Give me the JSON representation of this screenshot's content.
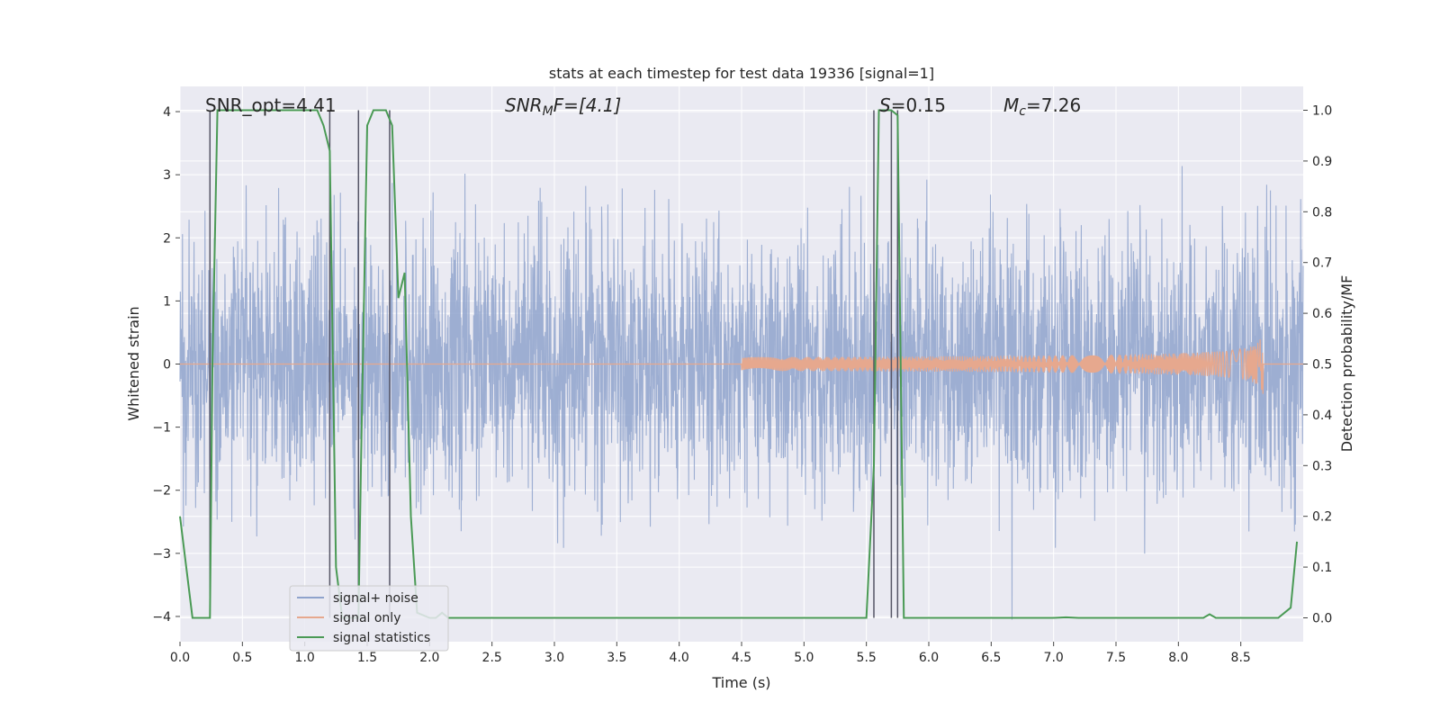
{
  "chart_data": {
    "type": "line",
    "title": "stats at each timestep for test data 19336 [signal=1]",
    "xlabel": "Time (s)",
    "ylabel": "Whitened strain",
    "y2label": "Detection probability/MF",
    "xlim": [
      0.0,
      9.0
    ],
    "ylim": [
      -4.4,
      4.4
    ],
    "y2lim": [
      -0.047,
      1.047
    ],
    "xticks": [
      "0.0",
      "0.5",
      "1.0",
      "1.5",
      "2.0",
      "2.5",
      "3.0",
      "3.5",
      "4.0",
      "4.5",
      "5.0",
      "5.5",
      "6.0",
      "6.5",
      "7.0",
      "7.5",
      "8.0",
      "8.5"
    ],
    "yticks": [
      "−4",
      "−3",
      "−2",
      "−1",
      "0",
      "1",
      "2",
      "3",
      "4"
    ],
    "y2ticks": [
      "0.0",
      "0.1",
      "0.2",
      "0.3",
      "0.4",
      "0.5",
      "0.6",
      "0.7",
      "0.8",
      "0.9",
      "1.0"
    ],
    "grid": true,
    "legend_position": "lower-left",
    "annotations": {
      "snr_opt": "SNR_opt=4.41",
      "snr_mf_main": "SNR",
      "snr_mf_sub": "M",
      "snr_mf_rest": "F=[4.1]",
      "s_main": "S",
      "s_rest": "=0.15",
      "mc_main": "M",
      "mc_sub": "c",
      "mc_rest": "=7.26"
    },
    "series": [
      {
        "name": "signal+ noise",
        "color": "#8fa3cc",
        "description_values": "gaussian-like whitened noise, amplitude mostly within ±2.5, peaks near ±4",
        "noise_std": 1.0
      },
      {
        "name": "signal only",
        "color": "#e6a88e",
        "chirp": {
          "start_time": 4.5,
          "end_time": 8.68,
          "peak_amplitude": 0.62
        }
      },
      {
        "name": "signal statistics",
        "color": "#4a9a55",
        "axis": "right",
        "x": [
          0.0,
          0.05,
          0.1,
          0.2,
          0.24,
          0.26,
          0.3,
          0.35,
          0.5,
          1.0,
          1.1,
          1.15,
          1.2,
          1.25,
          1.3,
          1.35,
          1.4,
          1.43,
          1.45,
          1.5,
          1.55,
          1.6,
          1.65,
          1.7,
          1.75,
          1.8,
          1.85,
          1.9,
          2.0,
          2.05,
          2.1,
          2.15,
          2.2,
          2.3,
          2.5,
          3.0,
          4.0,
          5.0,
          5.5,
          5.56,
          5.6,
          5.62,
          5.65,
          5.7,
          5.75,
          5.8,
          5.82,
          5.85,
          6.0,
          7.0,
          7.1,
          7.2,
          8.0,
          8.2,
          8.25,
          8.3,
          8.5,
          8.8,
          8.9,
          8.95
        ],
        "y": [
          0.2,
          0.1,
          0.0,
          0.0,
          0.0,
          0.5,
          1.0,
          1.0,
          1.0,
          1.0,
          1.0,
          0.97,
          0.92,
          0.1,
          0.0,
          0.0,
          0.0,
          0.0,
          0.3,
          0.97,
          1.0,
          1.0,
          1.0,
          0.97,
          0.63,
          0.68,
          0.2,
          0.01,
          0.0,
          0.0,
          0.01,
          0.0,
          0.0,
          0.0,
          0.0,
          0.0,
          0.0,
          0.0,
          0.0,
          0.3,
          1.0,
          1.0,
          1.0,
          1.0,
          0.99,
          0.0,
          0.0,
          0.0,
          0.0,
          0.0,
          0.001,
          0.0,
          0.0,
          0.0,
          0.007,
          0.0,
          0.0,
          0.0,
          0.02,
          0.15
        ]
      }
    ],
    "vlines": [
      0.24,
      1.2,
      1.43,
      1.68,
      5.56,
      5.7,
      5.75
    ]
  }
}
